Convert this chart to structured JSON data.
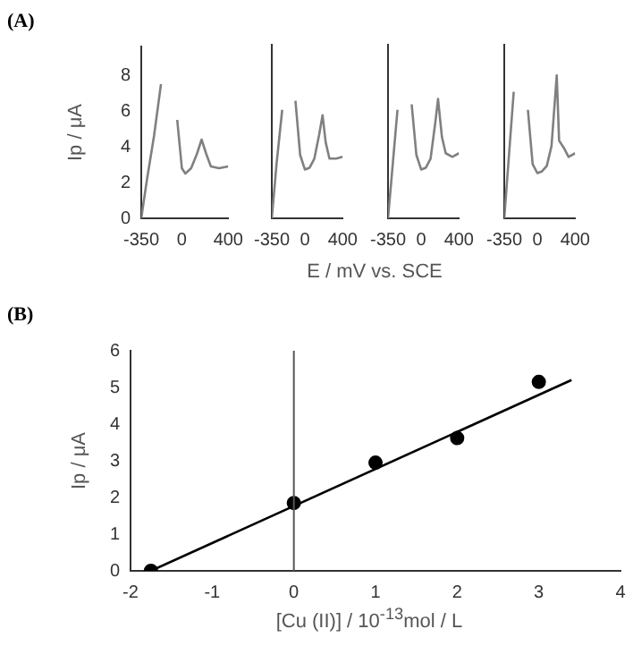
{
  "chart_data": [
    {
      "type": "line",
      "title": "(A)",
      "xlabel": "E / mV vs. SCE",
      "ylabel": "Ip / μA",
      "xlim": [
        -350,
        400
      ],
      "xticks": [
        -350,
        0,
        400
      ],
      "ylim": [
        0,
        9.6
      ],
      "yticks": [
        0,
        2,
        4,
        6,
        8
      ],
      "marker": "none",
      "series": [
        {
          "color": "#808080",
          "x": [
            -350,
            -300,
            -240,
            -180,
            -140,
            -80,
            -40,
            0,
            30,
            80,
            130,
            170,
            210,
            250,
            320,
            400
          ],
          "values": [
            0,
            2.2,
            4.6,
            7.5,
            null,
            null,
            5.5,
            2.8,
            2.5,
            2.8,
            3.6,
            4.4,
            3.6,
            2.9,
            2.8,
            2.9
          ]
        }
      ]
    },
    {
      "type": "line",
      "xlim": [
        -350,
        400
      ],
      "xticks": [
        -350,
        0,
        400
      ],
      "ylim": [
        0,
        9.6
      ],
      "yticks": [
        0,
        2,
        4,
        6,
        8
      ],
      "tick_labels": "x",
      "marker": "none",
      "series": [
        {
          "color": "#808080",
          "x": [
            -350,
            -300,
            -240,
            -190,
            -140,
            -100,
            -50,
            0,
            50,
            100,
            150,
            187,
            220,
            260,
            330,
            400
          ],
          "values": [
            0,
            3,
            6,
            null,
            null,
            6.5,
            3.5,
            2.7,
            2.8,
            3.3,
            4.6,
            5.7,
            4.2,
            3.3,
            3.3,
            3.4
          ]
        }
      ]
    },
    {
      "type": "line",
      "xlim": [
        -350,
        400
      ],
      "xticks": [
        -350,
        0,
        400
      ],
      "ylim": [
        0,
        9.6
      ],
      "yticks": [
        0,
        2,
        4,
        6,
        8
      ],
      "tick_labels": "x",
      "marker": "none",
      "series": [
        {
          "color": "#808080",
          "x": [
            -350,
            -300,
            -250,
            -210,
            -150,
            -100,
            -50,
            0,
            50,
            100,
            150,
            179,
            220,
            260,
            330,
            400
          ],
          "values": [
            0,
            3,
            6,
            null,
            null,
            6.3,
            3.5,
            2.7,
            2.8,
            3.3,
            5.3,
            6.6,
            4.5,
            3.6,
            3.4,
            3.6
          ]
        }
      ]
    },
    {
      "type": "line",
      "xlim": [
        -350,
        400
      ],
      "xticks": [
        -350,
        0,
        400
      ],
      "ylim": [
        0,
        9.6
      ],
      "yticks": [
        0,
        2,
        4,
        6,
        8
      ],
      "tick_labels": "x",
      "marker": "none",
      "series": [
        {
          "color": "#808080",
          "x": [
            -350,
            -300,
            -250,
            -220,
            -150,
            -100,
            -50,
            0,
            50,
            100,
            150,
            205,
            230,
            280,
            330,
            400
          ],
          "values": [
            0,
            3.5,
            7,
            null,
            null,
            6,
            3,
            2.5,
            2.6,
            2.9,
            4,
            7.9,
            4.3,
            3.9,
            3.4,
            3.6
          ]
        }
      ]
    },
    {
      "type": "scatter",
      "title": "(B)",
      "xlabel": "[Cu (II)] / 10$^{-13}$mol / L",
      "ylabel": "Ip / μA",
      "xlim": [
        -2,
        4
      ],
      "xticks": [
        -2,
        -1,
        0,
        1,
        2,
        3,
        4
      ],
      "ylim": [
        0,
        6
      ],
      "yticks": [
        0,
        1,
        2,
        3,
        4,
        5,
        6
      ],
      "ref_lines": [
        {
          "axis": "x",
          "value": 0,
          "color": "#555555"
        }
      ],
      "series": [
        {
          "color": "#000000",
          "marker": "circle",
          "x": [
            -1.75,
            0,
            1,
            2,
            3
          ],
          "values": [
            0,
            1.85,
            2.95,
            3.62,
            5.15
          ]
        },
        {
          "type": "line",
          "color": "#000000",
          "marker": "none",
          "x": [
            -1.75,
            3.4
          ],
          "values": [
            0,
            5.2
          ]
        }
      ]
    }
  ]
}
